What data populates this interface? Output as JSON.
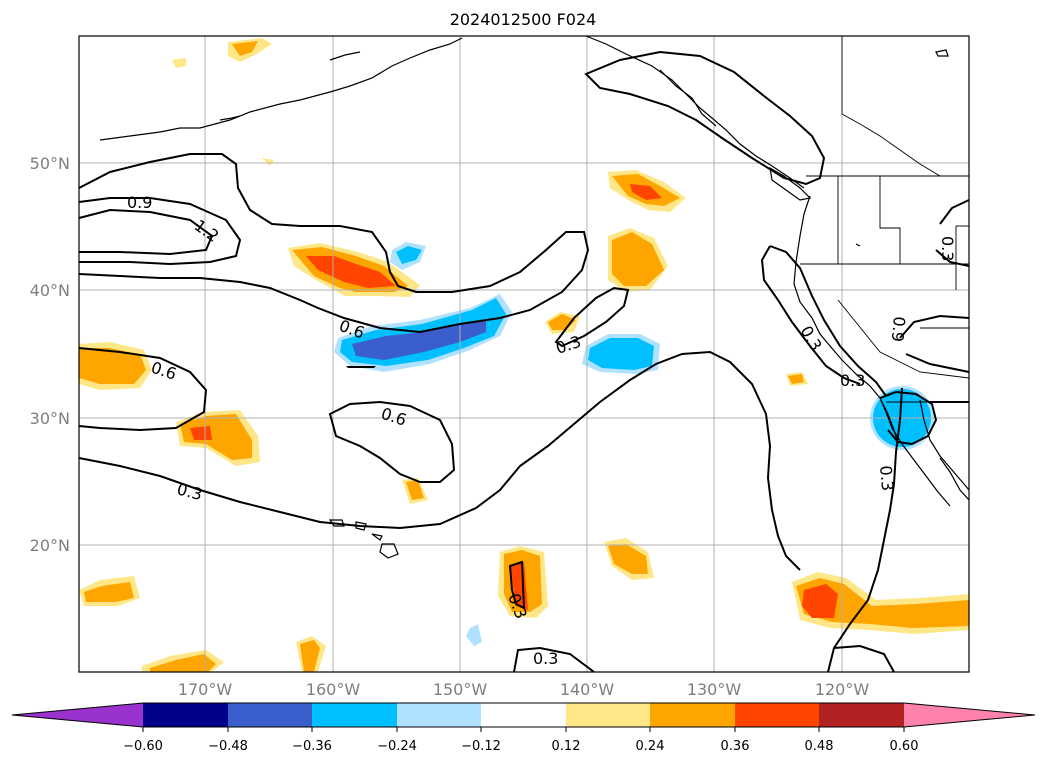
{
  "map": {
    "title": "2024012500 F024",
    "lat_labels": [
      "50°N",
      "40°N",
      "30°N",
      "20°N"
    ],
    "lon_labels": [
      "170°W",
      "160°W",
      "150°W",
      "140°W",
      "130°W",
      "120°W"
    ],
    "contour_labels": [
      "0.9",
      "1.2",
      "0.6",
      "0.6",
      "0.6",
      "0.3",
      "0.3",
      "0.3",
      "0.3",
      "0.3",
      "0.3",
      "0.3",
      "0.3",
      "0.9"
    ]
  },
  "colorbar": {
    "tick_labels": [
      "−0.60",
      "−0.48",
      "−0.36",
      "−0.24",
      "−0.12",
      "0.12",
      "0.24",
      "0.36",
      "0.48",
      "0.60"
    ],
    "colors": [
      "#9a32cd",
      "#00008b",
      "#3a5fcd",
      "#00bfff",
      "#b0e2ff",
      "#ffffff",
      "#ffe787",
      "#ffa500",
      "#ff4500",
      "#b22222",
      "#ff82ab"
    ]
  }
}
